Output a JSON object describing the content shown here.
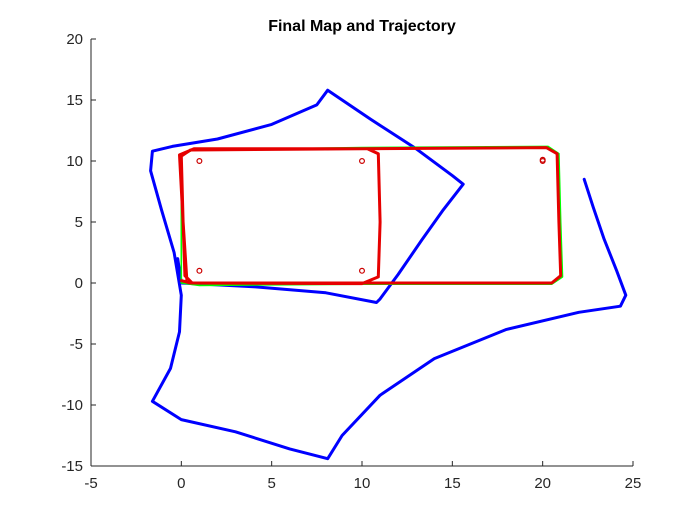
{
  "chart_data": {
    "type": "line",
    "title": "Final Map and Trajectory",
    "xlabel": "",
    "ylabel": "",
    "xlim": [
      -5,
      25
    ],
    "ylim": [
      -15,
      20
    ],
    "xticks": [
      -5,
      0,
      5,
      10,
      15,
      20,
      25
    ],
    "yticks": [
      -15,
      -10,
      -5,
      0,
      5,
      10,
      15,
      20
    ],
    "grid": false,
    "legend": "none",
    "box": "left-bottom axes only",
    "series": [
      {
        "color": "#0000ff",
        "style": "thick line",
        "points": [
          [
            22.3,
            8.5
          ],
          [
            22.8,
            6.2
          ],
          [
            23.4,
            3.6
          ],
          [
            24.1,
            1.0
          ],
          [
            24.6,
            -1.0
          ],
          [
            24.3,
            -1.9
          ],
          [
            22.0,
            -2.4
          ],
          [
            18.0,
            -3.8
          ],
          [
            14.0,
            -6.2
          ],
          [
            11.0,
            -9.2
          ],
          [
            8.9,
            -12.5
          ],
          [
            8.1,
            -14.4
          ],
          [
            6.0,
            -13.6
          ],
          [
            3.0,
            -12.2
          ],
          [
            0.0,
            -11.2
          ],
          [
            -1.6,
            -9.7
          ],
          [
            -0.6,
            -7.0
          ],
          [
            -0.1,
            -4.0
          ],
          [
            0.0,
            -1.0
          ],
          [
            -0.4,
            2.5
          ],
          [
            -1.1,
            6.0
          ],
          [
            -1.7,
            9.2
          ],
          [
            -1.6,
            10.8
          ],
          [
            -0.5,
            11.2
          ],
          [
            2.0,
            11.8
          ],
          [
            5.0,
            13.0
          ],
          [
            7.5,
            14.6
          ],
          [
            8.1,
            15.8
          ],
          [
            8.5,
            15.4
          ],
          [
            10.5,
            13.4
          ],
          [
            13.0,
            11.0
          ],
          [
            15.0,
            8.8
          ],
          [
            15.6,
            8.1
          ],
          [
            14.5,
            6.0
          ],
          [
            13.3,
            3.5
          ],
          [
            12.0,
            0.7
          ],
          [
            11.0,
            -1.3
          ],
          [
            10.8,
            -1.6
          ],
          [
            8.0,
            -0.8
          ],
          [
            4.0,
            -0.3
          ],
          [
            0.0,
            0.0
          ],
          [
            -0.2,
            2.0
          ]
        ]
      },
      {
        "color": "#00ff00",
        "style": "thin line",
        "points": [
          [
            0.0,
            0.0
          ],
          [
            1.0,
            -0.2
          ],
          [
            10.0,
            -0.1
          ],
          [
            20.5,
            -0.1
          ],
          [
            21.1,
            0.5
          ],
          [
            21.0,
            5.0
          ],
          [
            20.9,
            10.6
          ],
          [
            20.3,
            11.2
          ],
          [
            10.0,
            11.1
          ],
          [
            0.6,
            10.9
          ],
          [
            0.0,
            10.4
          ],
          [
            0.0,
            5.0
          ],
          [
            0.0,
            0.0
          ]
        ]
      },
      {
        "color": "#e60000",
        "style": "thick line",
        "points": [
          [
            0.0,
            0.2
          ],
          [
            0.5,
            0.0
          ],
          [
            10.0,
            0.0
          ],
          [
            20.5,
            0.0
          ],
          [
            21.0,
            0.6
          ],
          [
            20.9,
            5.0
          ],
          [
            20.8,
            10.6
          ],
          [
            20.2,
            11.1
          ],
          [
            10.0,
            11.0
          ],
          [
            0.5,
            10.9
          ],
          [
            0.0,
            10.4
          ],
          [
            0.1,
            5.0
          ],
          [
            0.2,
            0.6
          ],
          [
            0.6,
            0.0
          ],
          [
            10.0,
            -0.05
          ],
          [
            10.9,
            0.5
          ],
          [
            11.0,
            5.0
          ],
          [
            10.9,
            10.6
          ],
          [
            10.3,
            11.0
          ],
          [
            0.7,
            11.0
          ],
          [
            -0.1,
            10.5
          ],
          [
            0.1,
            5.0
          ],
          [
            0.3,
            0.3
          ]
        ]
      },
      {
        "color": "#cc0000",
        "style": "circle markers",
        "points": [
          [
            1,
            10
          ],
          [
            10,
            10
          ],
          [
            20,
            10
          ],
          [
            20,
            10.1
          ],
          [
            1,
            1
          ],
          [
            10,
            1
          ]
        ]
      }
    ]
  }
}
